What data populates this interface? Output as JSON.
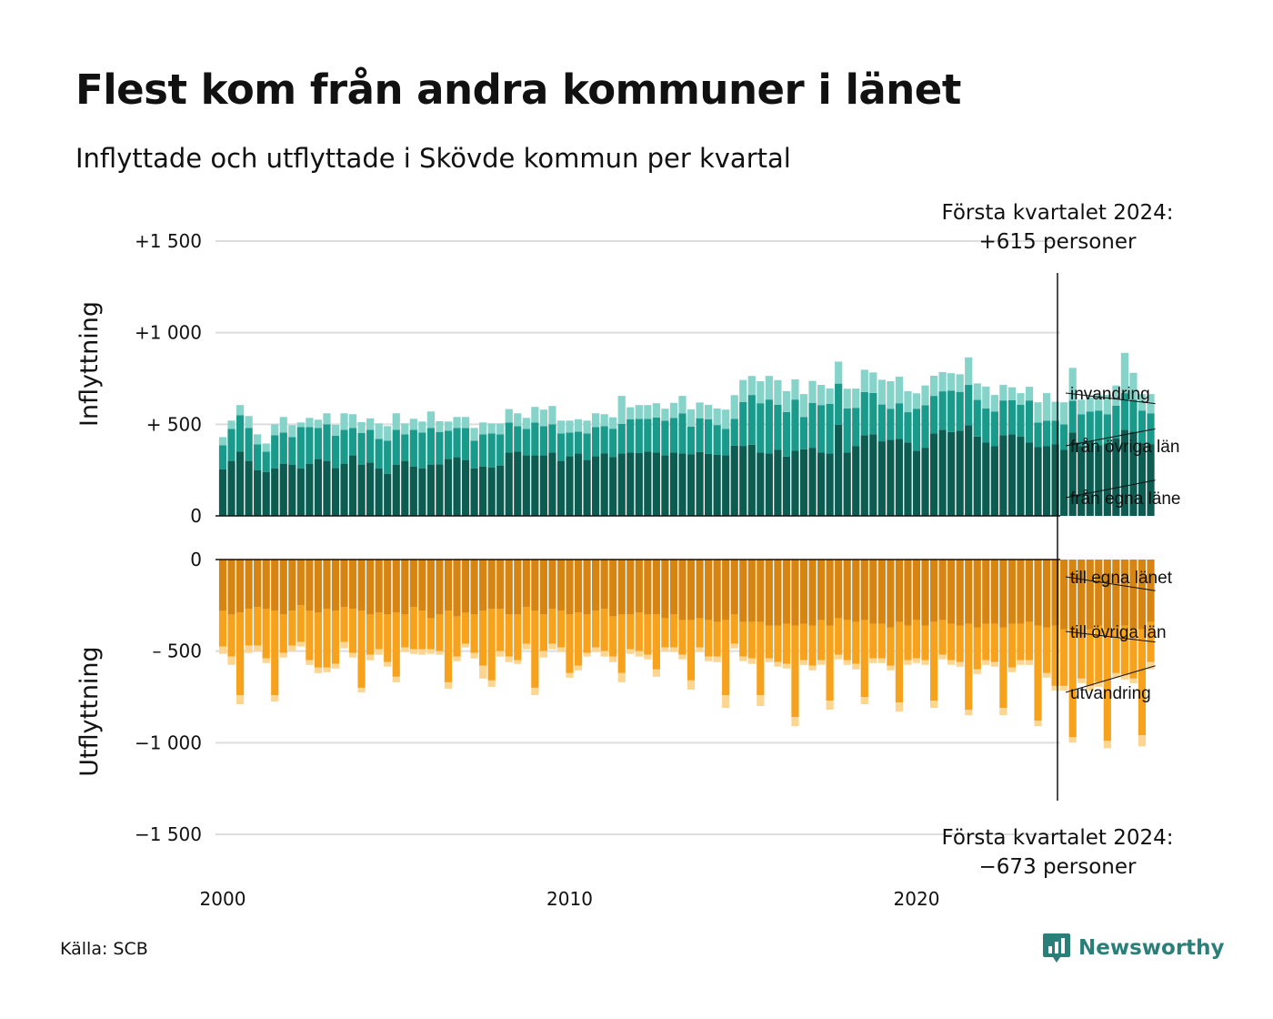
{
  "title": "Flest kom från andra kommuner i länet",
  "subtitle": "Inflyttade och utflyttade i Skövde kommun per kvartal",
  "source": "Källa: SCB",
  "logo_text": "Newsworthy",
  "colors": {
    "in_egna": "#0c5c52",
    "in_ovriga": "#1a9a8a",
    "in_invandring": "#86d3ca",
    "out_egna": "#d68512",
    "out_ovriga": "#f7a21c",
    "out_utvandring": "#fcd691",
    "logo": "#2a7f78",
    "grid": "#dddddd"
  },
  "annotations": {
    "top": [
      "Första kvartalet 2024:",
      "+615 personer"
    ],
    "bottom": [
      "Första kvartalet 2024:",
      "−673 personer"
    ]
  },
  "chart_data": {
    "type": "bar",
    "stacked": true,
    "x_ticks": [
      "2000",
      "2010",
      "2020"
    ],
    "panels": [
      {
        "ylabel": "Inflyttning",
        "ylim": [
          0,
          1500
        ],
        "y_ticks": [
          {
            "value": 0,
            "label": "0"
          },
          {
            "value": 500,
            "label": "+  500"
          },
          {
            "value": 1000,
            "label": "+1 000"
          },
          {
            "value": 1500,
            "label": "+1 500"
          }
        ],
        "series": [
          {
            "name": "från egna läne",
            "values": [
              255,
              300,
              350,
              300,
              250,
              240,
              260,
              285,
              280,
              260,
              285,
              310,
              300,
              262,
              285,
              330,
              280,
              292,
              260,
              230,
              280,
              300,
              270,
              260,
              280,
              282,
              310,
              320,
              305,
              260,
              270,
              265,
              275,
              345,
              350,
              330,
              330,
              330,
              345,
              300,
              325,
              340,
              305,
              325,
              342,
              322,
              340,
              345,
              343,
              350,
              345,
              330,
              345,
              340,
              337,
              348,
              338,
              333,
              330,
              384,
              382,
              388,
              345,
              340,
              360,
              324,
              355,
              364,
              372,
              345,
              340,
              497,
              345,
              380,
              441,
              445,
              407,
              415,
              420,
              401,
              356,
              372,
              450,
              470,
              458,
              465,
              495,
              433,
              400,
              380,
              440,
              445,
              432,
              400,
              375,
              380,
              390,
              360,
              456,
              382,
              408,
              385,
              395,
              422,
              470,
              460,
              395,
              390
            ]
          },
          {
            "name": "från övriga län",
            "values": [
              130,
              175,
              200,
              180,
              140,
              110,
              180,
              170,
              150,
              225,
              200,
              170,
              200,
              175,
              185,
              150,
              172,
              178,
              160,
              180,
              190,
              145,
              200,
              195,
              200,
              175,
              155,
              160,
              175,
              150,
              175,
              185,
              170,
              165,
              140,
              145,
              180,
              160,
              155,
              150,
              130,
              120,
              145,
              160,
              148,
              154,
              162,
              183,
              186,
              180,
              192,
              190,
              190,
              220,
              150,
              185,
              190,
              163,
              145,
              145,
              240,
              272,
              270,
              295,
              246,
              243,
              280,
              175,
              244,
              260,
              271,
              225,
              242,
              210,
              235,
              226,
              201,
              170,
              195,
              165,
              229,
              232,
              205,
              210,
              226,
              212,
              220,
              200,
              186,
              190,
              190,
              187,
              174,
              230,
              135,
              140,
              130,
              140,
              172,
              172,
              162,
              190,
              160,
              180,
              200,
              175,
              180,
              170
            ]
          },
          {
            "name": "invandring",
            "values": [
              45,
              45,
              55,
              65,
              55,
              45,
              60,
              85,
              65,
              25,
              50,
              45,
              60,
              60,
              90,
              75,
              60,
              62,
              85,
              80,
              90,
              60,
              60,
              60,
              90,
              60,
              50,
              60,
              60,
              70,
              65,
              55,
              60,
              73,
              70,
              60,
              85,
              90,
              100,
              70,
              65,
              68,
              70,
              75,
              65,
              62,
              153,
              65,
              76,
              75,
              78,
              65,
              82,
              95,
              95,
              86,
              78,
              90,
              105,
              130,
              120,
              104,
              120,
              129,
              135,
              114,
              110,
              126,
              121,
              110,
              85,
              120,
              107,
              105,
              122,
              112,
              135,
              150,
              145,
              115,
              84,
              108,
              110,
              105,
              95,
              96,
              150,
              90,
              120,
              90,
              85,
              70,
              64,
              75,
              110,
              150,
              103,
              120,
              180,
              80,
              78,
              84,
              106,
              110,
              220,
              146,
              90,
              105
            ]
          }
        ]
      },
      {
        "ylabel": "Utflyttning",
        "ylim": [
          -1500,
          0
        ],
        "y_ticks": [
          {
            "value": 0,
            "label": "0"
          },
          {
            "value": -500,
            "label": "–  500"
          },
          {
            "value": -1000,
            "label": "−1 000"
          },
          {
            "value": -1500,
            "label": "−1 500"
          }
        ],
        "series": [
          {
            "name": "till egna länet",
            "values": [
              -280,
              -300,
              -290,
              -270,
              -260,
              -270,
              -280,
              -300,
              -280,
              -250,
              -280,
              -290,
              -270,
              -280,
              -260,
              -270,
              -280,
              -300,
              -290,
              -300,
              -290,
              -300,
              -260,
              -280,
              -320,
              -300,
              -280,
              -310,
              -290,
              -300,
              -280,
              -270,
              -270,
              -300,
              -300,
              -260,
              -280,
              -300,
              -270,
              -280,
              -300,
              -290,
              -300,
              -280,
              -270,
              -310,
              -300,
              -300,
              -290,
              -300,
              -300,
              -320,
              -300,
              -330,
              -330,
              -320,
              -330,
              -340,
              -330,
              -300,
              -340,
              -340,
              -340,
              -360,
              -360,
              -350,
              -360,
              -350,
              -360,
              -330,
              -360,
              -320,
              -330,
              -340,
              -330,
              -350,
              -350,
              -370,
              -340,
              -360,
              -330,
              -360,
              -340,
              -330,
              -350,
              -360,
              -350,
              -370,
              -350,
              -350,
              -370,
              -350,
              -350,
              -340,
              -360,
              -370,
              -360,
              -380,
              -380,
              -360,
              -380,
              -360,
              -380,
              -370,
              -360,
              -380,
              -380,
              -340
            ]
          },
          {
            "name": "till övriga län",
            "values": [
              -195,
              -230,
              -450,
              -200,
              -210,
              -270,
              -460,
              -210,
              -190,
              -200,
              -270,
              -300,
              -320,
              -290,
              -190,
              -240,
              -420,
              -220,
              -200,
              -260,
              -350,
              -180,
              -230,
              -210,
              -170,
              -200,
              -390,
              -220,
              -170,
              -210,
              -300,
              -390,
              -230,
              -230,
              -250,
              -200,
              -420,
              -200,
              -190,
              -200,
              -320,
              -290,
              -210,
              -200,
              -230,
              -220,
              -320,
              -190,
              -210,
              -220,
              -300,
              -160,
              -180,
              -190,
              -330,
              -160,
              -200,
              -190,
              -410,
              -160,
              -190,
              -200,
              -400,
              -180,
              -200,
              -220,
              -500,
              -200,
              -220,
              -220,
              -410,
              -200,
              -220,
              -230,
              -420,
              -190,
              -190,
              -210,
              -440,
              -190,
              -210,
              -190,
              -430,
              -190,
              -200,
              -200,
              -470,
              -230,
              -200,
              -210,
              -440,
              -240,
              -200,
              -210,
              -520,
              -250,
              -330,
              -310,
              -590,
              -290,
              -310,
              -310,
              -610,
              -250,
              -270,
              -270,
              -580,
              -220
            ]
          },
          {
            "name": "utvandring",
            "values": [
              -40,
              -45,
              -50,
              -40,
              -30,
              -25,
              -35,
              -25,
              -30,
              -25,
              -25,
              -30,
              -25,
              -25,
              -35,
              -25,
              -25,
              -30,
              -30,
              -25,
              -30,
              -25,
              -25,
              -30,
              -25,
              -20,
              -35,
              -25,
              -20,
              -30,
              -70,
              -35,
              -30,
              -30,
              -20,
              -30,
              -40,
              -35,
              -30,
              -25,
              -25,
              -25,
              -20,
              -25,
              -30,
              -30,
              -50,
              -25,
              -30,
              -25,
              -40,
              -20,
              -25,
              -25,
              -50,
              -25,
              -25,
              -30,
              -70,
              -25,
              -25,
              -30,
              -60,
              -20,
              -25,
              -25,
              -50,
              -25,
              -25,
              -25,
              -50,
              -25,
              -25,
              -30,
              -40,
              -25,
              -25,
              -25,
              -50,
              -25,
              -25,
              -25,
              -40,
              -25,
              -25,
              -25,
              -30,
              -25,
              -25,
              -25,
              -40,
              -25,
              -25,
              -25,
              -30,
              -25,
              -25,
              -25,
              -30,
              -25,
              -25,
              -25,
              -40,
              -25,
              -25,
              -25,
              -60,
              -40
            ]
          }
        ]
      }
    ]
  }
}
